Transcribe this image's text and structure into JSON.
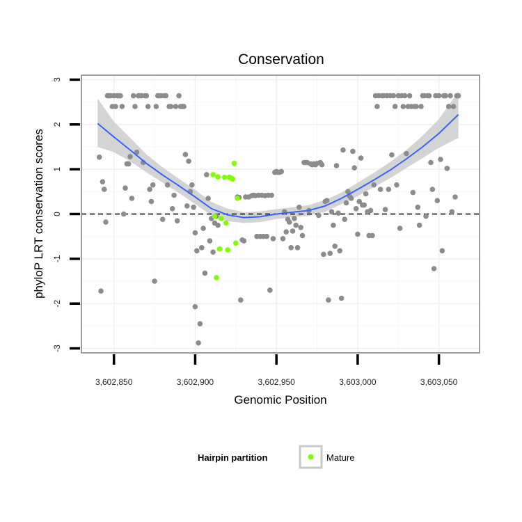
{
  "chart_data": {
    "type": "scatter",
    "title": "Conservation",
    "xlabel": "Genomic Position",
    "ylabel": "phyloP LRT conservation scores",
    "xlim": [
      3602830,
      3603075
    ],
    "ylim": [
      -3.1,
      3.1
    ],
    "x_ticks": [
      3602850,
      3602900,
      3602950,
      3603000,
      3603050
    ],
    "x_tick_labels": [
      "3,602,850",
      "3,602,900",
      "3,602,950",
      "3,603,000",
      "3,603,050"
    ],
    "y_ticks": [
      -3,
      -2,
      -1,
      0,
      1,
      2,
      3
    ],
    "y_tick_labels": [
      "-3",
      "-2",
      "-1",
      "0",
      "1",
      "2",
      "3"
    ],
    "grid": true,
    "reference_line": {
      "y": 0,
      "style": "dashed"
    },
    "legend": {
      "title": "Hairpin partition",
      "position": "bottom",
      "entries": [
        {
          "label": "Mature",
          "color": "#7fff00"
        }
      ]
    },
    "colors": {
      "background_points": "#8c8c8c",
      "mature": "#7fff00",
      "smooth_line": "#3366ff",
      "ribbon": "#cccccc"
    },
    "series": [
      {
        "role": "background",
        "points": [
          [
            3602841,
            1.27
          ],
          [
            3602842,
            -1.72
          ],
          [
            3602843,
            0.72
          ],
          [
            3602844,
            0.55
          ],
          [
            3602845,
            -0.18
          ],
          [
            3602846,
            2.64
          ],
          [
            3602847,
            2.64
          ],
          [
            3602848,
            2.64
          ],
          [
            3602849,
            2.4
          ],
          [
            3602850,
            2.64
          ],
          [
            3602851,
            2.4
          ],
          [
            3602852,
            2.64
          ],
          [
            3602853,
            2.64
          ],
          [
            3602854,
            2.64
          ],
          [
            3602855,
            2.4
          ],
          [
            3602856,
            0.0
          ],
          [
            3602857,
            0.58
          ],
          [
            3602858,
            1.12
          ],
          [
            3602859,
            1.12
          ],
          [
            3602860,
            1.28
          ],
          [
            3602861,
            0.35
          ],
          [
            3602862,
            2.64
          ],
          [
            3602863,
            2.4
          ],
          [
            3602864,
            1.38
          ],
          [
            3602865,
            2.64
          ],
          [
            3602866,
            2.64
          ],
          [
            3602867,
            2.64
          ],
          [
            3602868,
            1.15
          ],
          [
            3602869,
            2.64
          ],
          [
            3602870,
            2.64
          ],
          [
            3602871,
            2.4
          ],
          [
            3602872,
            0.55
          ],
          [
            3602873,
            0.28
          ],
          [
            3602874,
            0.65
          ],
          [
            3602875,
            -1.5
          ],
          [
            3602876,
            2.4
          ],
          [
            3602877,
            2.64
          ],
          [
            3602878,
            2.64
          ],
          [
            3602879,
            2.64
          ],
          [
            3602880,
            -0.12
          ],
          [
            3602881,
            2.64
          ],
          [
            3602882,
            2.64
          ],
          [
            3602883,
            0.65
          ],
          [
            3602884,
            2.4
          ],
          [
            3602885,
            2.4
          ],
          [
            3602886,
            0.12
          ],
          [
            3602887,
            0.42
          ],
          [
            3602888,
            2.4
          ],
          [
            3602889,
            -0.15
          ],
          [
            3602890,
            2.64
          ],
          [
            3602891,
            2.4
          ],
          [
            3602892,
            2.4
          ],
          [
            3602893,
            2.4
          ],
          [
            3602894,
            1.33
          ],
          [
            3602895,
            0.18
          ],
          [
            3602896,
            1.18
          ],
          [
            3602897,
            0.5
          ],
          [
            3602898,
            0.65
          ],
          [
            3602899,
            0.15
          ],
          [
            3602900,
            -0.42
          ],
          [
            3602900,
            -2.07
          ],
          [
            3602901,
            -0.82
          ],
          [
            3602902,
            -2.88
          ],
          [
            3602903,
            -2.45
          ],
          [
            3602904,
            -0.75
          ],
          [
            3602905,
            -0.32
          ],
          [
            3602906,
            -1.32
          ],
          [
            3602907,
            0.88
          ],
          [
            3602908,
            0.35
          ],
          [
            3602909,
            -0.6
          ],
          [
            3602910,
            -0.1
          ],
          [
            3602911,
            -0.85
          ],
          [
            3602912,
            -0.2
          ],
          [
            3602913,
            -0.05
          ],
          [
            3602914,
            -0.25
          ],
          [
            3602926,
            0.38
          ],
          [
            3602927,
            0.37
          ],
          [
            3602928,
            -1.92
          ],
          [
            3602929,
            -0.58
          ],
          [
            3602930,
            -0.6
          ],
          [
            3602931,
            0.38
          ],
          [
            3602933,
            0.38
          ],
          [
            3602935,
            0.41
          ],
          [
            3602936,
            0.42
          ],
          [
            3602937,
            0.41
          ],
          [
            3602938,
            -0.5
          ],
          [
            3602939,
            0.42
          ],
          [
            3602940,
            -0.5
          ],
          [
            3602941,
            0.42
          ],
          [
            3602942,
            -0.5
          ],
          [
            3602943,
            0.41
          ],
          [
            3602944,
            -0.5
          ],
          [
            3602945,
            0.42
          ],
          [
            3602946,
            -1.7
          ],
          [
            3602947,
            0.42
          ],
          [
            3602948,
            -0.55
          ],
          [
            3602949,
            0.93
          ],
          [
            3602950,
            0.95
          ],
          [
            3602951,
            0.93
          ],
          [
            3602952,
            0.93
          ],
          [
            3602953,
            0.95
          ],
          [
            3602954,
            -0.55
          ],
          [
            3602955,
            0.05
          ],
          [
            3602956,
            -0.4
          ],
          [
            3602957,
            -0.12
          ],
          [
            3602958,
            -0.18
          ],
          [
            3602959,
            -0.75
          ],
          [
            3602960,
            -0.38
          ],
          [
            3602961,
            -0.1
          ],
          [
            3602962,
            -0.25
          ],
          [
            3602963,
            -0.75
          ],
          [
            3602964,
            0.15
          ],
          [
            3602965,
            -0.3
          ],
          [
            3602966,
            -0.48
          ],
          [
            3602967,
            1.15
          ],
          [
            3602968,
            1.15
          ],
          [
            3602969,
            1.15
          ],
          [
            3602970,
            0.08
          ],
          [
            3602971,
            1.12
          ],
          [
            3602972,
            1.1
          ],
          [
            3602973,
            1.12
          ],
          [
            3602974,
            1.1
          ],
          [
            3602975,
            1.13
          ],
          [
            3602976,
            -0.03
          ],
          [
            3602977,
            1.15
          ],
          [
            3602978,
            1.1
          ],
          [
            3602979,
            -0.9
          ],
          [
            3602980,
            0.28
          ],
          [
            3602981,
            0.3
          ],
          [
            3602982,
            -1.92
          ],
          [
            3602983,
            -0.88
          ],
          [
            3602984,
            0.05
          ],
          [
            3602985,
            -0.25
          ],
          [
            3602986,
            -0.72
          ],
          [
            3602987,
            1.08
          ],
          [
            3602988,
            0.02
          ],
          [
            3602989,
            -0.82
          ],
          [
            3602990,
            -1.88
          ],
          [
            3602991,
            1.43
          ],
          [
            3602992,
            -0.12
          ],
          [
            3602993,
            0.25
          ],
          [
            3602994,
            0.5
          ],
          [
            3602995,
            0.4
          ],
          [
            3602996,
            0.35
          ],
          [
            3602997,
            1.4
          ],
          [
            3602998,
            1.03
          ],
          [
            3602999,
            0.12
          ],
          [
            3603000,
            -0.45
          ],
          [
            3603001,
            0.28
          ],
          [
            3603002,
            1.25
          ],
          [
            3603003,
            0.2
          ],
          [
            3603004,
            0.2
          ],
          [
            3603005,
            0.45
          ],
          [
            3603006,
            0.05
          ],
          [
            3603007,
            -0.48
          ],
          [
            3603008,
            0.08
          ],
          [
            3603009,
            -0.48
          ],
          [
            3603010,
            0.65
          ],
          [
            3603011,
            2.64
          ],
          [
            3603012,
            2.4
          ],
          [
            3603013,
            2.64
          ],
          [
            3603014,
            0.55
          ],
          [
            3603015,
            2.64
          ],
          [
            3603016,
            2.64
          ],
          [
            3603017,
            0.1
          ],
          [
            3603018,
            2.64
          ],
          [
            3603019,
            0.55
          ],
          [
            3603020,
            2.64
          ],
          [
            3603021,
            1.32
          ],
          [
            3603022,
            2.64
          ],
          [
            3603023,
            2.4
          ],
          [
            3603024,
            0.65
          ],
          [
            3603025,
            2.64
          ],
          [
            3603026,
            -0.32
          ],
          [
            3603027,
            2.64
          ],
          [
            3603028,
            2.4
          ],
          [
            3603029,
            2.64
          ],
          [
            3603030,
            1.35
          ],
          [
            3603031,
            2.4
          ],
          [
            3603032,
            2.64
          ],
          [
            3603033,
            2.4
          ],
          [
            3603034,
            0.48
          ],
          [
            3603035,
            2.4
          ],
          [
            3603036,
            2.4
          ],
          [
            3603037,
            0.15
          ],
          [
            3603038,
            -0.25
          ],
          [
            3603039,
            2.4
          ],
          [
            3603040,
            2.64
          ],
          [
            3603041,
            2.64
          ],
          [
            3603042,
            -0.05
          ],
          [
            3603043,
            2.64
          ],
          [
            3603044,
            2.64
          ],
          [
            3603045,
            1.15
          ],
          [
            3603046,
            0.55
          ],
          [
            3603047,
            -1.22
          ],
          [
            3603048,
            2.64
          ],
          [
            3603049,
            0.3
          ],
          [
            3603050,
            2.64
          ],
          [
            3603051,
            1.22
          ],
          [
            3603052,
            -0.82
          ],
          [
            3603053,
            2.64
          ],
          [
            3603054,
            2.64
          ],
          [
            3603055,
            1.02
          ],
          [
            3603056,
            2.4
          ],
          [
            3603057,
            2.64
          ],
          [
            3603058,
            0.05
          ],
          [
            3603059,
            2.4
          ],
          [
            3603060,
            0.38
          ],
          [
            3603061,
            2.64
          ],
          [
            3603062,
            2.64
          ]
        ]
      },
      {
        "name": "Mature",
        "points": [
          [
            3602911,
            0.88
          ],
          [
            3602912,
            -0.05
          ],
          [
            3602913,
            -1.42
          ],
          [
            3602914,
            0.83
          ],
          [
            3602915,
            -0.78
          ],
          [
            3602916,
            -0.1
          ],
          [
            3602918,
            0.82
          ],
          [
            3602919,
            -0.2
          ],
          [
            3602920,
            -0.8
          ],
          [
            3602921,
            0.82
          ],
          [
            3602922,
            0.8
          ],
          [
            3602923,
            0.78
          ],
          [
            3602924,
            1.13
          ],
          [
            3602925,
            -0.65
          ],
          [
            3602926,
            0.35
          ]
        ]
      }
    ],
    "smooth": {
      "x": [
        3602840,
        3602850,
        3602860,
        3602870,
        3602880,
        3602890,
        3602900,
        3602910,
        3602920,
        3602930,
        3602940,
        3602950,
        3602960,
        3602970,
        3602980,
        3602990,
        3603000,
        3603010,
        3603020,
        3603030,
        3603040,
        3603050,
        3603062
      ],
      "y": [
        2.02,
        1.72,
        1.43,
        1.13,
        0.87,
        0.63,
        0.38,
        0.12,
        -0.02,
        -0.08,
        -0.06,
        0.0,
        0.04,
        0.08,
        0.18,
        0.35,
        0.55,
        0.76,
        0.98,
        1.23,
        1.5,
        1.8,
        2.22
      ],
      "lower": [
        1.5,
        1.38,
        1.18,
        0.93,
        0.7,
        0.47,
        0.22,
        -0.03,
        -0.16,
        -0.2,
        -0.18,
        -0.11,
        -0.07,
        -0.04,
        0.05,
        0.22,
        0.4,
        0.6,
        0.8,
        1.03,
        1.25,
        1.48,
        1.7
      ],
      "upper": [
        2.58,
        2.06,
        1.7,
        1.33,
        1.04,
        0.79,
        0.54,
        0.27,
        0.12,
        0.04,
        0.06,
        0.11,
        0.15,
        0.2,
        0.31,
        0.48,
        0.7,
        0.92,
        1.16,
        1.43,
        1.75,
        2.12,
        2.74
      ]
    }
  }
}
